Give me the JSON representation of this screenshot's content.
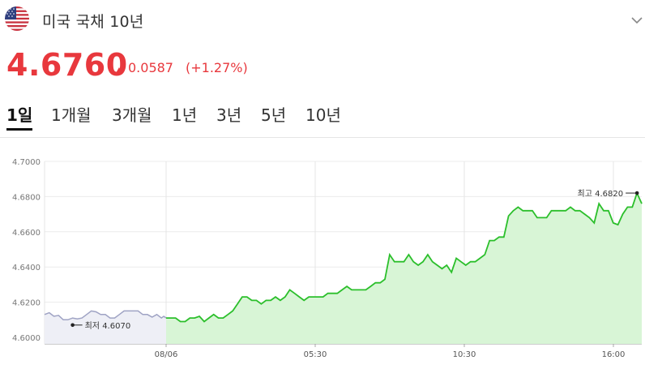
{
  "header": {
    "flag_icon": "us-flag-icon",
    "title": "미국 국채 10년",
    "expand_icon": "chevron-down-icon"
  },
  "quote": {
    "price": "4.6760",
    "direction_icon": "triangle-up-icon",
    "change": "0.0587",
    "change_pct": "(+1.27%)",
    "up_color": "#e8383d"
  },
  "tabs": [
    {
      "label": "1일",
      "active": true
    },
    {
      "label": "1개월",
      "active": false
    },
    {
      "label": "3개월",
      "active": false
    },
    {
      "label": "1년",
      "active": false
    },
    {
      "label": "3년",
      "active": false
    },
    {
      "label": "5년",
      "active": false
    },
    {
      "label": "10년",
      "active": false
    }
  ],
  "chart_data": {
    "type": "line",
    "y_ticks": [
      "4.7000",
      "4.6800",
      "4.6600",
      "4.6400",
      "4.6200",
      "4.6000"
    ],
    "ylim": [
      4.5995,
      4.7005
    ],
    "x_ticks": [
      {
        "label": "08/06",
        "t": 0.0
      },
      {
        "label": "05:30",
        "t": 5.5
      },
      {
        "label": "10:30",
        "t": 10.5
      },
      {
        "label": "16:00",
        "t": 16.0
      }
    ],
    "xlim": [
      -4.0,
      16.1
    ],
    "grid": true,
    "previous_session": {
      "color": "#9fa3c4",
      "fill": "#eeeff6",
      "points": [
        [
          -4.0,
          4.613
        ],
        [
          -3.8,
          4.614
        ],
        [
          -3.6,
          4.612
        ],
        [
          -3.4,
          4.6125
        ],
        [
          -3.2,
          4.61
        ],
        [
          -3.0,
          4.61
        ],
        [
          -2.8,
          4.611
        ],
        [
          -2.6,
          4.6105
        ],
        [
          -2.4,
          4.611
        ],
        [
          -2.2,
          4.613
        ],
        [
          -2.0,
          4.615
        ],
        [
          -1.8,
          4.6145
        ],
        [
          -1.6,
          4.613
        ],
        [
          -1.4,
          4.613
        ],
        [
          -1.2,
          4.611
        ],
        [
          -1.0,
          4.611
        ],
        [
          -0.8,
          4.613
        ],
        [
          -0.6,
          4.615
        ],
        [
          -0.4,
          4.615
        ],
        [
          -0.2,
          4.615
        ],
        [
          0.0,
          4.615
        ],
        [
          0.2,
          4.613
        ],
        [
          0.4,
          4.613
        ],
        [
          0.6,
          4.6115
        ],
        [
          0.8,
          4.613
        ],
        [
          1.0,
          4.611
        ],
        [
          1.1,
          4.612
        ],
        [
          1.2,
          4.611
        ]
      ]
    },
    "current_session": {
      "color": "#2bbf2b",
      "fill": "#d8f5d6",
      "points": [
        [
          0.0,
          4.611
        ],
        [
          0.2,
          4.611
        ],
        [
          0.4,
          4.611
        ],
        [
          0.6,
          4.609
        ],
        [
          0.8,
          4.609
        ],
        [
          1.0,
          4.611
        ],
        [
          1.2,
          4.611
        ],
        [
          1.4,
          4.612
        ],
        [
          1.6,
          4.609
        ],
        [
          1.8,
          4.611
        ],
        [
          2.0,
          4.613
        ],
        [
          2.2,
          4.611
        ],
        [
          2.4,
          4.611
        ],
        [
          2.6,
          4.613
        ],
        [
          2.8,
          4.615
        ],
        [
          3.0,
          4.619
        ],
        [
          3.2,
          4.623
        ],
        [
          3.4,
          4.623
        ],
        [
          3.6,
          4.621
        ],
        [
          3.8,
          4.621
        ],
        [
          4.0,
          4.619
        ],
        [
          4.2,
          4.621
        ],
        [
          4.4,
          4.621
        ],
        [
          4.6,
          4.623
        ],
        [
          4.8,
          4.621
        ],
        [
          5.0,
          4.623
        ],
        [
          5.2,
          4.627
        ],
        [
          5.4,
          4.625
        ],
        [
          5.6,
          4.623
        ],
        [
          5.8,
          4.621
        ],
        [
          6.0,
          4.623
        ],
        [
          6.2,
          4.623
        ],
        [
          6.4,
          4.623
        ],
        [
          6.6,
          4.623
        ],
        [
          6.8,
          4.625
        ],
        [
          7.0,
          4.625
        ],
        [
          7.2,
          4.625
        ],
        [
          7.4,
          4.627
        ],
        [
          7.6,
          4.629
        ],
        [
          7.8,
          4.627
        ],
        [
          8.0,
          4.627
        ],
        [
          8.2,
          4.627
        ],
        [
          8.4,
          4.627
        ],
        [
          8.6,
          4.629
        ],
        [
          8.8,
          4.631
        ],
        [
          9.0,
          4.631
        ],
        [
          9.2,
          4.633
        ],
        [
          9.4,
          4.647
        ],
        [
          9.6,
          4.643
        ],
        [
          9.8,
          4.643
        ],
        [
          10.0,
          4.643
        ],
        [
          10.2,
          4.647
        ],
        [
          10.4,
          4.643
        ],
        [
          10.6,
          4.641
        ],
        [
          10.8,
          4.643
        ],
        [
          11.0,
          4.647
        ],
        [
          11.2,
          4.643
        ],
        [
          11.4,
          4.641
        ],
        [
          11.6,
          4.639
        ],
        [
          11.8,
          4.641
        ],
        [
          12.0,
          4.637
        ],
        [
          12.2,
          4.645
        ],
        [
          12.4,
          4.643
        ],
        [
          12.6,
          4.641
        ],
        [
          12.8,
          4.643
        ],
        [
          13.0,
          4.643
        ],
        [
          13.2,
          4.645
        ],
        [
          13.4,
          4.647
        ],
        [
          13.6,
          4.655
        ],
        [
          13.8,
          4.655
        ],
        [
          14.0,
          4.657
        ],
        [
          14.2,
          4.657
        ],
        [
          14.4,
          4.669
        ],
        [
          14.6,
          4.672
        ],
        [
          14.8,
          4.674
        ],
        [
          15.0,
          4.672
        ],
        [
          15.2,
          4.672
        ],
        [
          15.4,
          4.672
        ],
        [
          15.6,
          4.668
        ],
        [
          15.8,
          4.668
        ],
        [
          16.0,
          4.668
        ],
        [
          16.2,
          4.672
        ],
        [
          16.4,
          4.672
        ],
        [
          16.6,
          4.672
        ],
        [
          16.8,
          4.672
        ],
        [
          17.0,
          4.674
        ],
        [
          17.2,
          4.672
        ],
        [
          17.4,
          4.672
        ],
        [
          17.6,
          4.67
        ],
        [
          17.8,
          4.668
        ],
        [
          18.0,
          4.665
        ],
        [
          18.2,
          4.676
        ],
        [
          18.4,
          4.672
        ],
        [
          18.6,
          4.672
        ],
        [
          18.8,
          4.665
        ],
        [
          19.0,
          4.664
        ],
        [
          19.2,
          4.67
        ],
        [
          19.4,
          4.674
        ],
        [
          19.6,
          4.674
        ],
        [
          19.8,
          4.682
        ],
        [
          20.0,
          4.676
        ]
      ]
    },
    "annotations": {
      "low": {
        "label": "최저 4.6070",
        "value": 4.607,
        "t": -2.8
      },
      "high": {
        "label": "최고 4.6820",
        "value": 4.682,
        "t": 19.8
      }
    }
  }
}
